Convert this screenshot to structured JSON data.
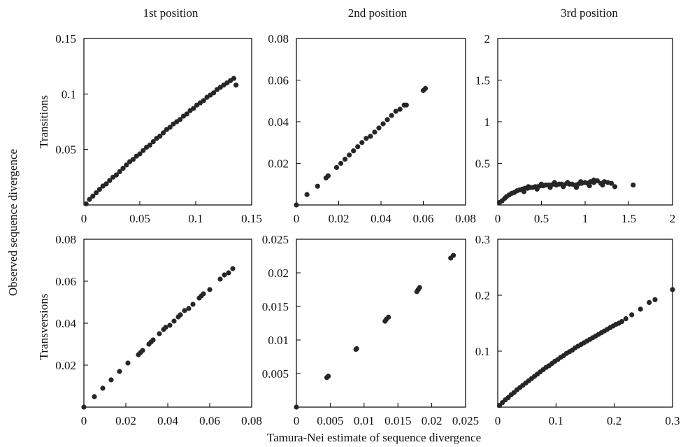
{
  "figure": {
    "column_titles": [
      "1st position",
      "2nd position",
      "3rd position"
    ],
    "row_labels": [
      "Transitions",
      "Transversions"
    ],
    "ylabel": "Observed sequence divergence",
    "xlabel": "Tamura-Nei estimate of sequence divergence"
  },
  "colors": {
    "point": "#262626",
    "axis": "#000000",
    "background": "#ffffff"
  },
  "chart_data": [
    {
      "type": "scatter",
      "row": "Transitions",
      "column": "1st position",
      "xlim": [
        0,
        0.15
      ],
      "ylim": [
        0,
        0.15
      ],
      "xticks": [
        0,
        0.05,
        0.1,
        0.15
      ],
      "xtick_labels": [
        "0",
        "0.05",
        "0.1",
        "0.15"
      ],
      "yticks": [
        0.05,
        0.1,
        0.15
      ],
      "ytick_labels": [
        "0.05",
        "0.1",
        "0.15"
      ],
      "grid": false,
      "x": [
        0.002,
        0.005,
        0.008,
        0.011,
        0.014,
        0.017,
        0.02,
        0.023,
        0.026,
        0.029,
        0.032,
        0.035,
        0.038,
        0.041,
        0.044,
        0.047,
        0.05,
        0.053,
        0.056,
        0.059,
        0.062,
        0.065,
        0.068,
        0.071,
        0.074,
        0.077,
        0.08,
        0.083,
        0.086,
        0.089,
        0.092,
        0.095,
        0.098,
        0.101,
        0.104,
        0.107,
        0.11,
        0.113,
        0.116,
        0.119,
        0.122,
        0.125,
        0.128,
        0.131,
        0.134,
        0.136
      ],
      "y": [
        0.001,
        0.005,
        0.008,
        0.011,
        0.014,
        0.017,
        0.019,
        0.022,
        0.025,
        0.027,
        0.03,
        0.033,
        0.036,
        0.039,
        0.041,
        0.044,
        0.046,
        0.049,
        0.052,
        0.054,
        0.057,
        0.06,
        0.062,
        0.065,
        0.068,
        0.07,
        0.073,
        0.075,
        0.077,
        0.08,
        0.082,
        0.085,
        0.087,
        0.09,
        0.092,
        0.094,
        0.097,
        0.099,
        0.101,
        0.104,
        0.106,
        0.108,
        0.11,
        0.112,
        0.114,
        0.108
      ]
    },
    {
      "type": "scatter",
      "row": "Transitions",
      "column": "2nd position",
      "xlim": [
        0,
        0.08
      ],
      "ylim": [
        0,
        0.08
      ],
      "xticks": [
        0,
        0.02,
        0.04,
        0.06,
        0.08
      ],
      "xtick_labels": [
        "0",
        "0.02",
        "0.04",
        "0.06",
        "0.08"
      ],
      "yticks": [
        0.02,
        0.04,
        0.06,
        0.08
      ],
      "ytick_labels": [
        "0.02",
        "0.04",
        "0.06",
        "0.08"
      ],
      "grid": false,
      "x": [
        0.0,
        0.005,
        0.01,
        0.014,
        0.015,
        0.019,
        0.021,
        0.023,
        0.025,
        0.027,
        0.029,
        0.031,
        0.033,
        0.035,
        0.037,
        0.039,
        0.041,
        0.043,
        0.045,
        0.047,
        0.049,
        0.051,
        0.052,
        0.06,
        0.061
      ],
      "y": [
        0.0,
        0.005,
        0.009,
        0.013,
        0.014,
        0.018,
        0.02,
        0.022,
        0.024,
        0.026,
        0.028,
        0.03,
        0.032,
        0.033,
        0.035,
        0.037,
        0.039,
        0.041,
        0.043,
        0.045,
        0.046,
        0.048,
        0.048,
        0.055,
        0.056
      ]
    },
    {
      "type": "scatter",
      "row": "Transitions",
      "column": "3rd position",
      "xlim": [
        0,
        2
      ],
      "ylim": [
        0,
        2
      ],
      "xticks": [
        0,
        0.5,
        1,
        1.5,
        2
      ],
      "xtick_labels": [
        "0",
        "0.5",
        "1",
        "1.5",
        "2"
      ],
      "yticks": [
        0.5,
        1,
        1.5,
        2
      ],
      "ytick_labels": [
        "0.5",
        "1",
        "1.5",
        "2"
      ],
      "grid": false,
      "x": [
        0.02,
        0.05,
        0.08,
        0.1,
        0.13,
        0.16,
        0.19,
        0.22,
        0.25,
        0.28,
        0.31,
        0.34,
        0.37,
        0.4,
        0.43,
        0.46,
        0.49,
        0.52,
        0.55,
        0.58,
        0.61,
        0.64,
        0.67,
        0.7,
        0.73,
        0.76,
        0.79,
        0.82,
        0.85,
        0.88,
        0.92,
        0.96,
        1.0,
        1.03,
        1.06,
        1.1,
        1.14,
        1.18,
        1.22,
        1.26,
        1.3,
        1.34,
        1.55,
        0.3,
        0.45,
        0.6,
        0.75,
        0.9,
        1.05,
        1.2,
        0.35,
        0.5,
        0.65,
        0.8,
        0.95,
        1.1
      ],
      "y": [
        0.03,
        0.05,
        0.08,
        0.1,
        0.12,
        0.14,
        0.15,
        0.17,
        0.18,
        0.19,
        0.2,
        0.2,
        0.21,
        0.21,
        0.22,
        0.22,
        0.23,
        0.23,
        0.24,
        0.24,
        0.24,
        0.25,
        0.24,
        0.25,
        0.25,
        0.24,
        0.26,
        0.25,
        0.25,
        0.24,
        0.25,
        0.26,
        0.27,
        0.26,
        0.28,
        0.27,
        0.29,
        0.26,
        0.28,
        0.27,
        0.26,
        0.22,
        0.24,
        0.16,
        0.19,
        0.21,
        0.22,
        0.21,
        0.23,
        0.24,
        0.22,
        0.25,
        0.27,
        0.27,
        0.28,
        0.3
      ]
    },
    {
      "type": "scatter",
      "row": "Transversions",
      "column": "1st position",
      "xlim": [
        0,
        0.08
      ],
      "ylim": [
        0,
        0.08
      ],
      "xticks": [
        0,
        0.02,
        0.04,
        0.06,
        0.08
      ],
      "xtick_labels": [
        "0",
        "0.02",
        "0.04",
        "0.06",
        "0.08"
      ],
      "yticks": [
        0.02,
        0.04,
        0.06,
        0.08
      ],
      "ytick_labels": [
        "0.02",
        "0.04",
        "0.06",
        "0.08"
      ],
      "grid": false,
      "x": [
        0.0,
        0.005,
        0.009,
        0.013,
        0.017,
        0.021,
        0.026,
        0.027,
        0.028,
        0.031,
        0.032,
        0.033,
        0.036,
        0.038,
        0.039,
        0.041,
        0.043,
        0.045,
        0.046,
        0.048,
        0.05,
        0.052,
        0.055,
        0.056,
        0.057,
        0.06,
        0.065,
        0.067,
        0.069,
        0.071
      ],
      "y": [
        0.0,
        0.005,
        0.009,
        0.013,
        0.017,
        0.021,
        0.025,
        0.026,
        0.027,
        0.03,
        0.031,
        0.032,
        0.035,
        0.037,
        0.038,
        0.039,
        0.041,
        0.043,
        0.044,
        0.046,
        0.047,
        0.049,
        0.052,
        0.053,
        0.054,
        0.056,
        0.061,
        0.063,
        0.064,
        0.066
      ]
    },
    {
      "type": "scatter",
      "row": "Transversions",
      "column": "2nd position",
      "xlim": [
        0,
        0.025
      ],
      "ylim": [
        0,
        0.025
      ],
      "xticks": [
        0,
        0.005,
        0.01,
        0.015,
        0.02,
        0.025
      ],
      "xtick_labels": [
        "0",
        "0.005",
        "0.01",
        "0.015",
        "0.02",
        "0.025"
      ],
      "yticks": [
        0.005,
        0.01,
        0.015,
        0.02,
        0.025
      ],
      "ytick_labels": [
        "0.005",
        "0.01",
        "0.015",
        "0.02",
        "0.025"
      ],
      "grid": false,
      "x": [
        0.0,
        0.0045,
        0.0047,
        0.0088,
        0.0089,
        0.0131,
        0.0133,
        0.0136,
        0.0178,
        0.018,
        0.0182,
        0.0228,
        0.0232
      ],
      "y": [
        0.0,
        0.0044,
        0.0046,
        0.0086,
        0.0087,
        0.0128,
        0.0131,
        0.0134,
        0.0172,
        0.0175,
        0.0178,
        0.0222,
        0.0226
      ]
    },
    {
      "type": "scatter",
      "row": "Transversions",
      "column": "3rd position",
      "xlim": [
        0,
        0.3
      ],
      "ylim": [
        0,
        0.3
      ],
      "xticks": [
        0,
        0.1,
        0.2,
        0.3
      ],
      "xtick_labels": [
        "0",
        "0.1",
        "0.2",
        "0.3"
      ],
      "yticks": [
        0.1,
        0.2,
        0.3
      ],
      "ytick_labels": [
        "0.1",
        "0.2",
        "0.3"
      ],
      "grid": false,
      "x": [
        0.003,
        0.008,
        0.013,
        0.018,
        0.023,
        0.028,
        0.033,
        0.038,
        0.043,
        0.048,
        0.053,
        0.058,
        0.063,
        0.068,
        0.073,
        0.078,
        0.083,
        0.088,
        0.093,
        0.098,
        0.103,
        0.108,
        0.113,
        0.118,
        0.123,
        0.128,
        0.133,
        0.138,
        0.143,
        0.148,
        0.153,
        0.158,
        0.163,
        0.168,
        0.173,
        0.178,
        0.183,
        0.188,
        0.193,
        0.198,
        0.203,
        0.208,
        0.213,
        0.22,
        0.23,
        0.245,
        0.26,
        0.27,
        0.3
      ],
      "y": [
        0.003,
        0.008,
        0.013,
        0.017,
        0.022,
        0.026,
        0.031,
        0.035,
        0.039,
        0.043,
        0.047,
        0.051,
        0.055,
        0.059,
        0.063,
        0.067,
        0.071,
        0.074,
        0.078,
        0.082,
        0.085,
        0.089,
        0.092,
        0.096,
        0.099,
        0.102,
        0.106,
        0.109,
        0.112,
        0.115,
        0.118,
        0.121,
        0.124,
        0.127,
        0.13,
        0.133,
        0.136,
        0.139,
        0.142,
        0.145,
        0.148,
        0.15,
        0.153,
        0.158,
        0.165,
        0.175,
        0.187,
        0.192,
        0.21
      ]
    }
  ]
}
